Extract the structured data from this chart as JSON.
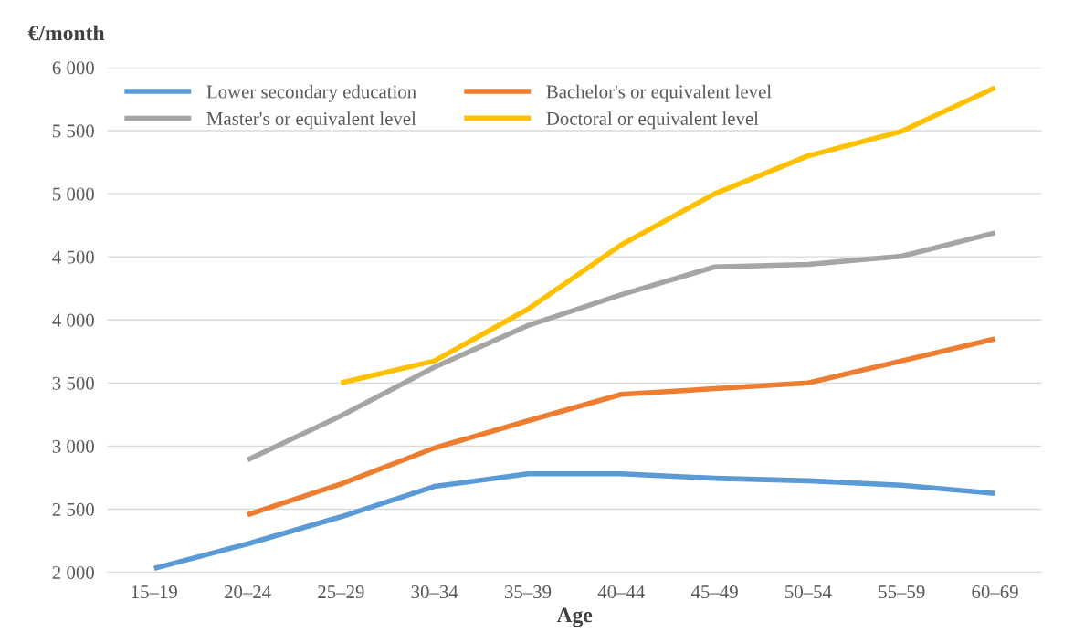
{
  "chart_data": {
    "type": "line",
    "xlabel": "Age",
    "ylabel": "€/month",
    "categories": [
      "15–19",
      "20–24",
      "25–29",
      "30–34",
      "35–39",
      "40–44",
      "45–49",
      "50–54",
      "55–59",
      "60–69"
    ],
    "series": [
      {
        "name": "Lower secondary education",
        "color": "#5b9bd5",
        "values": [
          2030,
          2225,
          2440,
          2680,
          2780,
          2780,
          2745,
          2725,
          2690,
          2625
        ]
      },
      {
        "name": "Bachelor's or equivalent level",
        "color": "#ed7d31",
        "values": [
          null,
          2455,
          2700,
          2985,
          3200,
          3410,
          3455,
          3500,
          3675,
          3850
        ]
      },
      {
        "name": "Master's or equivalent level",
        "color": "#a5a5a5",
        "values": [
          null,
          2890,
          3240,
          3625,
          3955,
          4200,
          4420,
          4440,
          4505,
          4690
        ]
      },
      {
        "name": "Doctoral or equivalent level",
        "color": "#ffc000",
        "values": [
          null,
          null,
          3500,
          3675,
          4085,
          4595,
          5000,
          5300,
          5495,
          5840
        ]
      }
    ],
    "ylim": [
      2000,
      6000
    ],
    "yticks": [
      {
        "value": 2000,
        "label": "2 000"
      },
      {
        "value": 2500,
        "label": "2 500"
      },
      {
        "value": 3000,
        "label": "3 000"
      },
      {
        "value": 3500,
        "label": "3 500"
      },
      {
        "value": 4000,
        "label": "4 000"
      },
      {
        "value": 4500,
        "label": "4 500"
      },
      {
        "value": 5000,
        "label": "5 000"
      },
      {
        "value": 5500,
        "label": "5 500"
      },
      {
        "value": 6000,
        "label": "6 000"
      }
    ],
    "grid": "y",
    "legend": "top left",
    "marker": "none",
    "line_style": "solid"
  }
}
